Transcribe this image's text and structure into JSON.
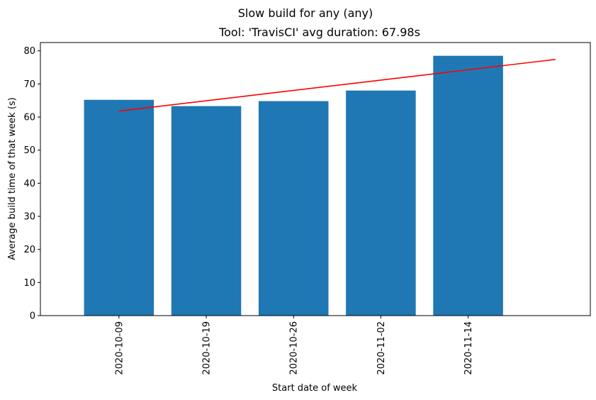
{
  "chart_data": {
    "type": "bar",
    "title": "Slow build for any (any)",
    "subtitle": "Tool: 'TravisCI' avg duration: 67.98s",
    "xlabel": "Start date of week",
    "ylabel": "Average build time of that week (s)",
    "categories": [
      "2020-10-09",
      "2020-10-19",
      "2020-10-26",
      "2020-11-02",
      "2020-11-14"
    ],
    "values": [
      65.2,
      63.3,
      64.8,
      68.0,
      78.5
    ],
    "ylim": [
      0,
      82.5
    ],
    "yticks": [
      0,
      10,
      20,
      30,
      40,
      50,
      60,
      70,
      80
    ],
    "trend": {
      "x_start": 0,
      "y_start": 61.8,
      "x_end": 5,
      "y_end": 77.4
    },
    "grid": false,
    "colors": {
      "bar": "#1f77b4",
      "trend": "#ff0000",
      "axis": "#000000"
    }
  }
}
